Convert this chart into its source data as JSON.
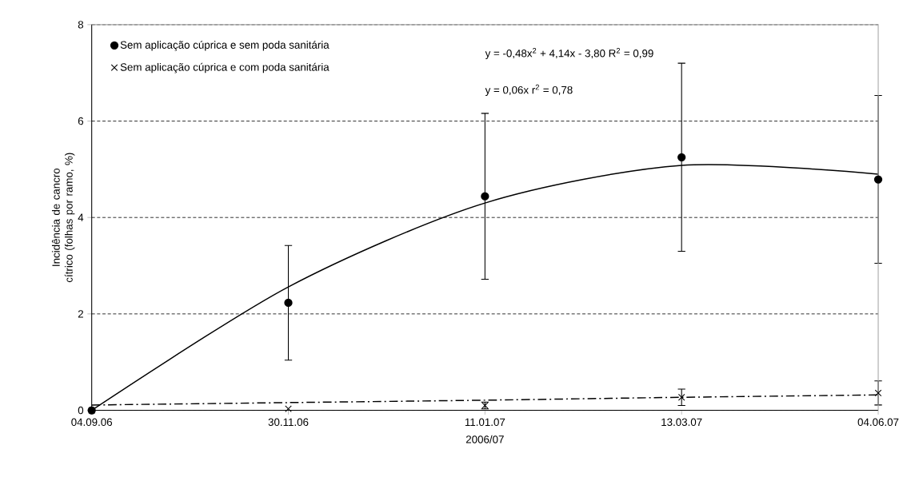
{
  "chart_data": {
    "type": "scatter",
    "xlabel": "2006/07",
    "ylabel": "Incidência de cancro cítrico (folhas por ramo, %)",
    "categories": [
      "04.09.06",
      "30.11.06",
      "11.01.07",
      "13.03.07",
      "04.06.07"
    ],
    "ylim": [
      0,
      8
    ],
    "yticks": [
      0,
      2,
      4,
      6,
      8
    ],
    "grid": "y",
    "legend": "top left",
    "annotations": [
      "y = -0,48x$^{2}$ + 4,14x - 3,80   R$^{2}$ = 0,99",
      "y = 0,06x   r$^{2}$ = 0,78"
    ],
    "series": [
      {
        "name": "Sem aplicação cúprica e sem poda sanitária",
        "marker": "circle",
        "color": "#000000",
        "values": [
          0,
          2.23,
          4.44,
          5.25,
          4.79
        ],
        "errors": [
          null,
          1.19,
          1.72,
          1.95,
          1.74
        ]
      },
      {
        "name": "Sem aplicação cúprica e com poda sanitária",
        "marker": "cross",
        "color": "#000000",
        "values": [
          0,
          0.03,
          0.1,
          0.27,
          0.36
        ],
        "errors": [
          null,
          null,
          0.07,
          0.17,
          0.25
        ]
      },
      {
        "type": "line",
        "color": "#000000",
        "line_style": "solid",
        "marker": "none",
        "values": [
          0,
          2.56,
          4.3,
          5.08,
          4.9
        ]
      },
      {
        "type": "line",
        "color": "#000000",
        "line_style": "dashed",
        "marker": "none",
        "values": [
          0.11,
          0.16,
          0.21,
          0.27,
          0.32
        ]
      }
    ]
  }
}
